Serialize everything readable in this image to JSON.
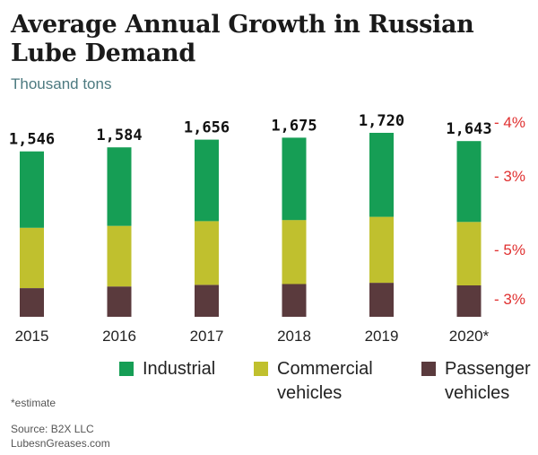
{
  "chart_data": {
    "type": "bar",
    "stacked": true,
    "title": "Average Annual Growth in Russian Lube Demand",
    "subtitle": "Thousand tons",
    "categories": [
      "2015",
      "2016",
      "2017",
      "2018",
      "2019",
      "2020*"
    ],
    "totals": [
      1546,
      1584,
      1656,
      1675,
      1720,
      1643
    ],
    "total_labels": [
      "1,546",
      "1,584",
      "1,656",
      "1,675",
      "1,720",
      "1,643"
    ],
    "series": [
      {
        "name": "Passenger vehicles",
        "color": "#5a3a3d",
        "values": [
          268,
          284,
          298,
          306,
          318,
          294
        ]
      },
      {
        "name": "Commercial vehicles",
        "color": "#c0c02e",
        "values": [
          564,
          566,
          596,
          599,
          617,
          593
        ]
      },
      {
        "name": "Industrial",
        "color": "#169e55",
        "values": [
          714,
          734,
          762,
          770,
          785,
          756
        ]
      }
    ],
    "growth_labels": [
      "- 4%",
      "- 3%",
      "- 5%",
      "- 3%"
    ],
    "growth_color": "#e03030",
    "ylim": [
      0,
      1720
    ],
    "grid": false,
    "legend_position": "bottom"
  },
  "legend": [
    {
      "name": "Industrial",
      "lines": [
        "Industrial"
      ],
      "color": "#169e55"
    },
    {
      "name": "Commercial vehicles",
      "lines": [
        "Commercial",
        "vehicles"
      ],
      "color": "#c0c02e"
    },
    {
      "name": "Passenger vehicles",
      "lines": [
        "Passenger",
        "vehicles"
      ],
      "color": "#5a3a3d"
    }
  ],
  "footnote": "*estimate",
  "source": "Source: B2X LLC",
  "site": "LubesnGreases.com"
}
